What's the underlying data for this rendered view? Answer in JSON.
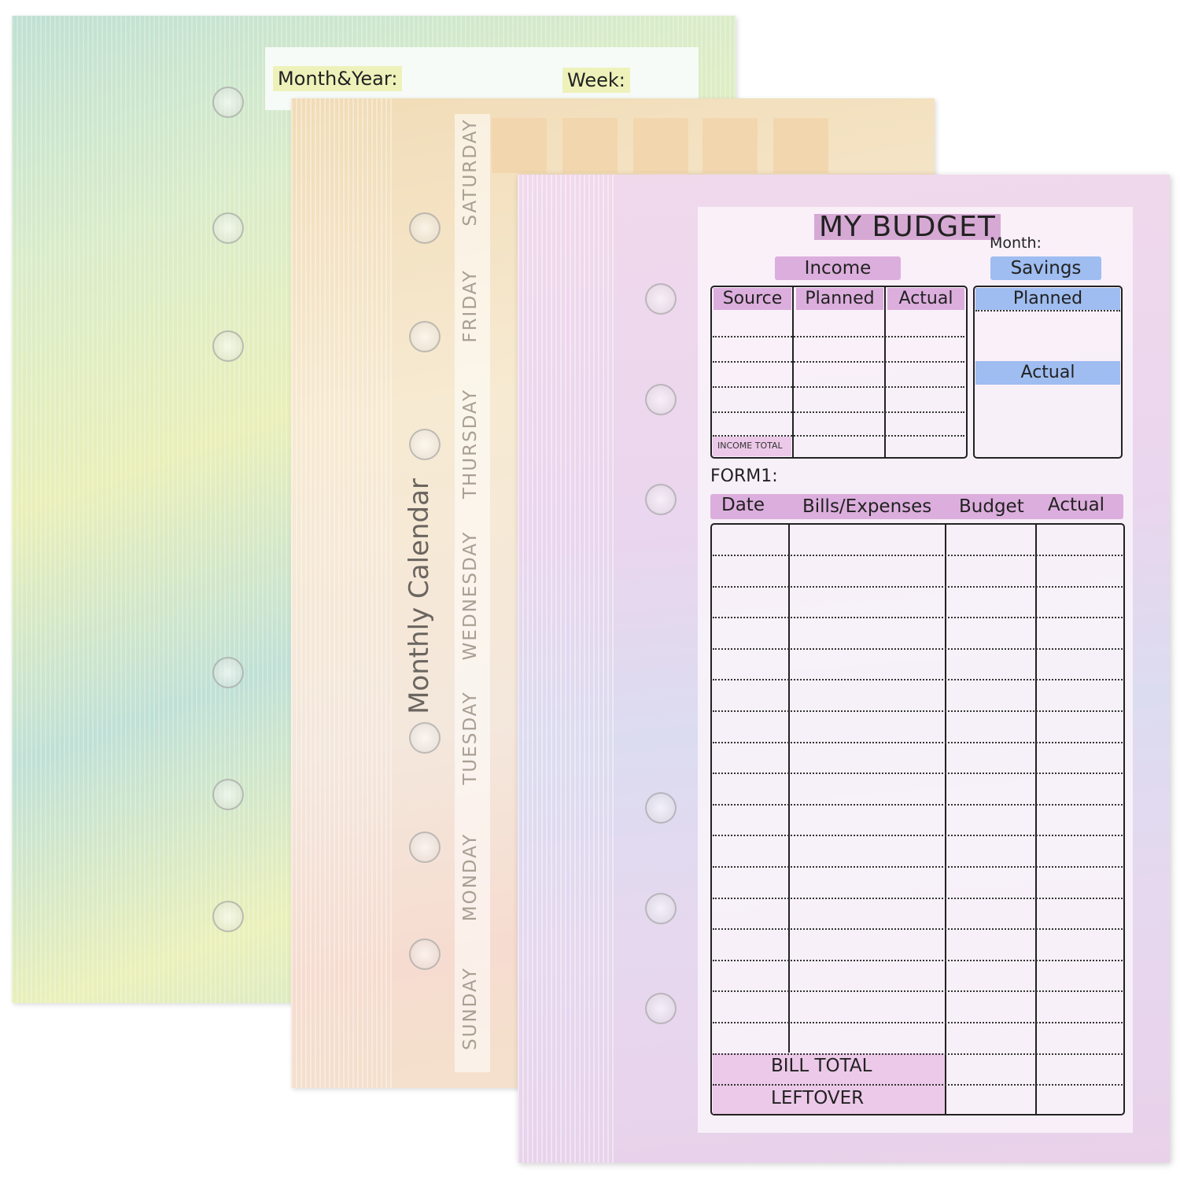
{
  "weekly_sheet": {
    "month_year_label": "Month&Year:",
    "week_label": "Week:"
  },
  "calendar_sheet": {
    "title": "Monthly Calendar",
    "days": [
      "SATURDAY",
      "FRIDAY",
      "THURSDAY",
      "WEDNESDAY",
      "TUESDAY",
      "MONDAY",
      "SUNDAY"
    ]
  },
  "budget_sheet": {
    "title_part1": "MY",
    "title_part2": "BUDGET",
    "month_label": "Month:",
    "income": {
      "header": "Income",
      "columns": [
        "Source",
        "Planned",
        "Actual"
      ],
      "total_label": "INCOME TOTAL"
    },
    "savings": {
      "header": "Savings",
      "planned_label": "Planned",
      "actual_label": "Actual"
    },
    "form_label": "FORM1:",
    "expenses": {
      "columns": [
        "Date",
        "Bills/Expenses",
        "Budget",
        "Actual"
      ],
      "bill_total_label": "BILL TOTAL",
      "leftover_label": "LEFTOVER"
    },
    "colors": {
      "pink": "#dcaedd",
      "blue": "#9fbdf0"
    }
  }
}
